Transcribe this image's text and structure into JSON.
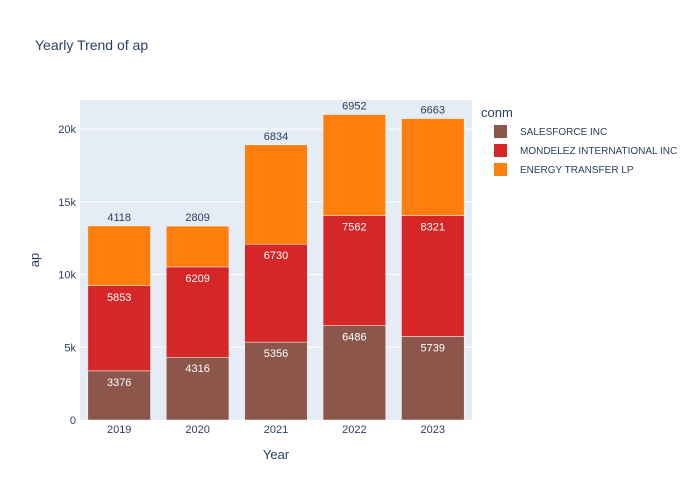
{
  "chart_data": {
    "type": "bar",
    "stacked": true,
    "title": "Yearly Trend of ap",
    "xlabel": "Year",
    "ylabel": "ap",
    "categories": [
      "2019",
      "2020",
      "2021",
      "2022",
      "2023"
    ],
    "ylim": [
      0,
      22000
    ],
    "yticks": [
      0,
      5000,
      10000,
      15000,
      20000
    ],
    "ytick_labels": [
      "0",
      "5k",
      "10k",
      "15k",
      "20k"
    ],
    "grid": true,
    "legend": {
      "title": "conm",
      "placement": "right"
    },
    "series": [
      {
        "name": "SALESFORCE INC",
        "color": "#8c564b",
        "values": [
          3376,
          4316,
          5356,
          6486,
          5739
        ]
      },
      {
        "name": "MONDELEZ INTERNATIONAL INC",
        "color": "#d62728",
        "values": [
          5853,
          6209,
          6730,
          7562,
          8321
        ]
      },
      {
        "name": "ENERGY TRANSFER LP",
        "color": "#ff7f0e",
        "values": [
          4118,
          2809,
          6834,
          6952,
          6663
        ]
      }
    ]
  }
}
